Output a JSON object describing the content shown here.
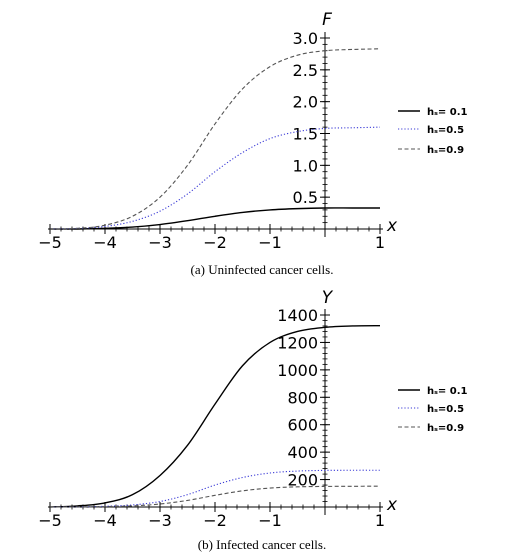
{
  "chart_data": [
    {
      "type": "line",
      "caption": "(a) Uninfected cancer cells.",
      "xlabel": "x",
      "ylabel": "F",
      "xlim": [
        -5,
        1
      ],
      "ylim": [
        0,
        3.0
      ],
      "xticks": [
        -5,
        -4,
        -3,
        -2,
        -1,
        1
      ],
      "xtick_labels": [
        "−5",
        "−4",
        "−3",
        "−2",
        "−1",
        "1"
      ],
      "yticks": [
        0.5,
        1.0,
        1.5,
        2.0,
        2.5,
        3.0
      ],
      "ytick_labels": [
        "0.5",
        "1.0",
        "1.5",
        "2.0",
        "2.5",
        "3.0"
      ],
      "legend_position": "right",
      "series": [
        {
          "name": "hₛ= 0.1",
          "style": "solid",
          "color": "#000000",
          "x": [
            -5,
            -4.5,
            -4,
            -3.5,
            -3,
            -2.5,
            -2,
            -1.5,
            -1,
            -0.5,
            0,
            0.5,
            1
          ],
          "y": [
            0.0,
            0.0,
            0.01,
            0.03,
            0.07,
            0.13,
            0.2,
            0.26,
            0.3,
            0.32,
            0.33,
            0.33,
            0.33
          ]
        },
        {
          "name": "hₛ=0.5",
          "style": "dotted",
          "color": "#3a3ad6",
          "x": [
            -5,
            -4.5,
            -4,
            -3.5,
            -3,
            -2.5,
            -2,
            -1.5,
            -1,
            -0.5,
            0,
            0.5,
            1
          ],
          "y": [
            0.0,
            0.01,
            0.04,
            0.12,
            0.28,
            0.55,
            0.9,
            1.2,
            1.42,
            1.53,
            1.58,
            1.59,
            1.6
          ]
        },
        {
          "name": "hₛ=0.9",
          "style": "dashed",
          "color": "#555555",
          "x": [
            -5,
            -4.5,
            -4,
            -3.5,
            -3,
            -2.5,
            -2,
            -1.5,
            -1,
            -0.5,
            0,
            0.5,
            1
          ],
          "y": [
            0.0,
            0.01,
            0.06,
            0.2,
            0.5,
            1.0,
            1.65,
            2.2,
            2.55,
            2.73,
            2.8,
            2.82,
            2.83
          ]
        }
      ]
    },
    {
      "type": "line",
      "caption": "(b) Infected cancer cells.",
      "xlabel": "x",
      "ylabel": "Y",
      "xlim": [
        -5,
        1
      ],
      "ylim": [
        0,
        1400
      ],
      "xticks": [
        -5,
        -4,
        -3,
        -2,
        -1,
        1
      ],
      "xtick_labels": [
        "−5",
        "−4",
        "−3",
        "−2",
        "−1",
        "1"
      ],
      "yticks": [
        200,
        400,
        600,
        800,
        1000,
        1200,
        1400
      ],
      "ytick_labels": [
        "200",
        "400",
        "600",
        "800",
        "1000",
        "1200",
        "1400"
      ],
      "legend_position": "right",
      "series": [
        {
          "name": "hₛ= 0.1",
          "style": "solid",
          "color": "#000000",
          "x": [
            -5,
            -4.5,
            -4,
            -3.5,
            -3,
            -2.5,
            -2,
            -1.5,
            -1,
            -0.5,
            0,
            0.5,
            1
          ],
          "y": [
            0,
            8,
            30,
            90,
            230,
            450,
            750,
            1030,
            1200,
            1280,
            1310,
            1320,
            1322
          ]
        },
        {
          "name": "hₛ=0.5",
          "style": "dotted",
          "color": "#3a3ad6",
          "x": [
            -5,
            -4.5,
            -4,
            -3.5,
            -3,
            -2.5,
            -2,
            -1.5,
            -1,
            -0.5,
            0,
            0.5,
            1
          ],
          "y": [
            0,
            1,
            5,
            15,
            40,
            90,
            160,
            215,
            248,
            262,
            267,
            268,
            268
          ]
        },
        {
          "name": "hₛ=0.9",
          "style": "dashed",
          "color": "#555555",
          "x": [
            -5,
            -4.5,
            -4,
            -3.5,
            -3,
            -2.5,
            -2,
            -1.5,
            -1,
            -0.5,
            0,
            0.5,
            1
          ],
          "y": [
            0,
            1,
            3,
            8,
            22,
            48,
            85,
            118,
            138,
            147,
            150,
            151,
            152
          ]
        }
      ]
    }
  ]
}
